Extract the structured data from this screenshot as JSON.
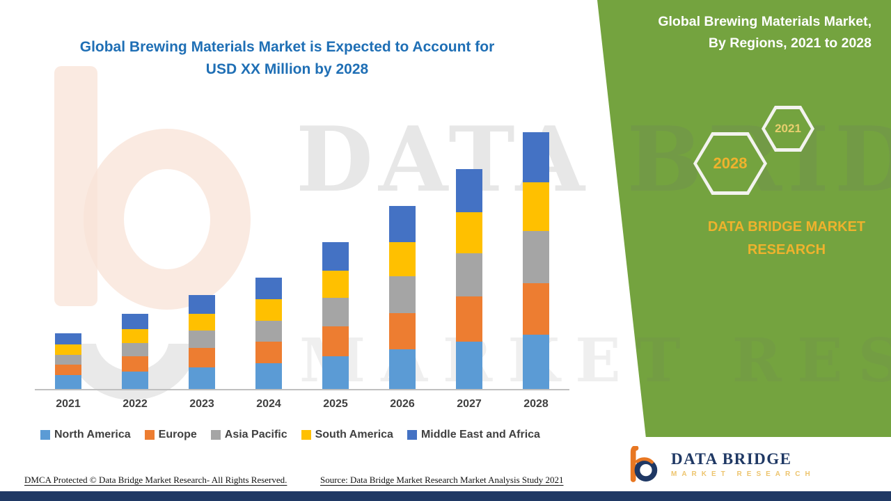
{
  "header": {
    "title_line1": "Global Brewing Materials Market is Expected to Account for",
    "title_line2": "USD XX Million by 2028"
  },
  "side_panel": {
    "heading": "Global Brewing Materials Market, By Regions, 2021 to 2028",
    "hexagons": [
      {
        "label": "2028"
      },
      {
        "label": "2021"
      }
    ],
    "brand": "DATA BRIDGE MARKET RESEARCH",
    "panel_color": "#74A33F",
    "accent_gold": "#EFB22D"
  },
  "watermark": {
    "line1": "DATA BRIDGE",
    "line2": "MARKET RESEARCH"
  },
  "logo": {
    "name": "DATA BRIDGE",
    "subtitle": "MARKET RESEARCH"
  },
  "footer": {
    "dmca": "DMCA Protected © Data Bridge Market Research- All Rights Reserved.",
    "source": "Source: Data Bridge Market Research Market Analysis Study 2021"
  },
  "colors": {
    "title_blue": "#1F6FB5",
    "navy": "#1F3864",
    "axis_gray": "#BFBFBF"
  },
  "chart_data": {
    "type": "bar",
    "stacked": true,
    "title": "Global Brewing Materials Market is Expected to Account for USD XX Million by 2028",
    "categories": [
      "2021",
      "2022",
      "2023",
      "2024",
      "2025",
      "2026",
      "2027",
      "2028"
    ],
    "series": [
      {
        "name": "North America",
        "color": "#5B9BD5",
        "values": [
          20,
          26,
          32,
          38,
          48,
          58,
          70,
          80
        ]
      },
      {
        "name": "Europe",
        "color": "#ED7D31",
        "values": [
          16,
          22,
          28,
          32,
          44,
          54,
          66,
          76
        ]
      },
      {
        "name": "Asia Pacific",
        "color": "#A5A5A5",
        "values": [
          14,
          20,
          26,
          30,
          42,
          54,
          64,
          76
        ]
      },
      {
        "name": "South America",
        "color": "#FFC000",
        "values": [
          16,
          20,
          24,
          32,
          40,
          50,
          60,
          72
        ]
      },
      {
        "name": "Middle East and Africa",
        "color": "#4472C4",
        "values": [
          16,
          22,
          28,
          32,
          42,
          53,
          63,
          73
        ]
      }
    ],
    "xlabel": "",
    "ylabel": "",
    "ylim": [
      0,
      400
    ],
    "value_axis_visible": false,
    "grid": false,
    "legend_position": "bottom"
  }
}
